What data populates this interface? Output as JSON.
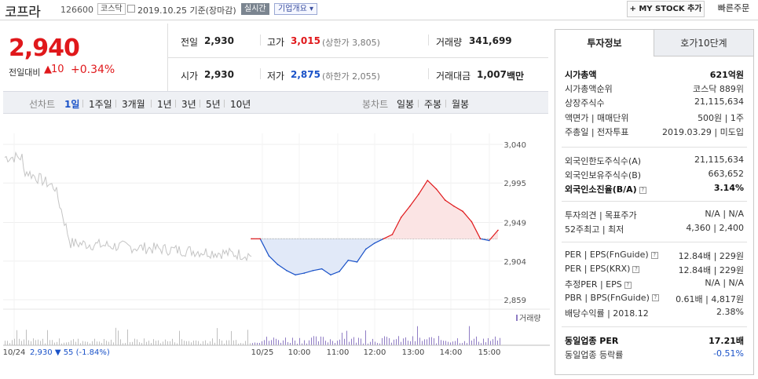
{
  "header": {
    "company_name": "코프라",
    "code": "126600",
    "market": "코스닥",
    "date_text": "2019.10.25  기준(장마감)",
    "realtime_label": "실시간",
    "overview_label": "기업개요",
    "overview_arrow": "▾",
    "mystock_label": "+ MY STOCK 추가",
    "quick_order_label": "빠른주문"
  },
  "price": {
    "current": "2,940",
    "change_label": "전일대비",
    "change_arrow": "▲",
    "change_value": "10",
    "change_percent": "+0.34%"
  },
  "quote": {
    "prev_close_label": "전일",
    "prev_close": "2,930",
    "open_label": "시가",
    "open": "2,930",
    "high_label": "고가",
    "high": "3,015",
    "upper_limit": "(상한가 3,805)",
    "low_label": "저가",
    "low": "2,875",
    "lower_limit": "(하한가 2,055)",
    "volume_label": "거래량",
    "volume": "341,699",
    "amount_label": "거래대금",
    "amount": "1,007",
    "amount_unit": "백만"
  },
  "period_bar": {
    "line_label": "선차트",
    "line_items": [
      "1일",
      "1주일",
      "3개월",
      "1년",
      "3년",
      "5년",
      "10년"
    ],
    "active": "1일",
    "candle_label": "봉차트",
    "candle_items": [
      "일봉",
      "주봉",
      "월봉"
    ]
  },
  "chart_data": {
    "type": "line",
    "series": [
      {
        "x": [
          "09:00",
          "09:15",
          "09:30",
          "09:45",
          "10:00",
          "10:15",
          "10:30",
          "10:45",
          "11:00",
          "11:15",
          "11:30",
          "11:45",
          "12:00",
          "12:15",
          "12:30",
          "12:45",
          "13:00",
          "13:15",
          "13:30",
          "13:45",
          "14:00",
          "14:15",
          "14:30",
          "14:45",
          "15:00",
          "15:05",
          "15:10",
          "15:15",
          "15:20"
        ],
        "values": [
          2930,
          2930,
          2910,
          2900,
          2893,
          2888,
          2890,
          2893,
          2895,
          2888,
          2892,
          2905,
          2903,
          2918,
          2925,
          2930,
          2935,
          2955,
          2968,
          2982,
          2998,
          2988,
          2975,
          2968,
          2962,
          2950,
          2930,
          2928,
          2940
        ]
      }
    ],
    "reference_value": 2930,
    "y_ticks": [
      "3,040",
      "2,995",
      "2,949",
      "2,904",
      "2,859"
    ],
    "ylim": [
      2859,
      3040
    ],
    "x_ticks": [
      "10/24",
      "10/25",
      "10:00",
      "11:00",
      "12:00",
      "13:00",
      "14:00",
      "15:00"
    ],
    "volume_label": "거래량",
    "prev_day_summary": {
      "date": "10/24",
      "close": "2,930",
      "arrow": "▼",
      "change": "55",
      "percent": "(-1.84%)"
    },
    "colors": {
      "up": "#e0181b",
      "down": "#1a52c8",
      "up_fill": "#fbe4e4",
      "down_fill": "#e1e9f8",
      "prev": "#c4c4c4",
      "volume": "#8f7cc4"
    }
  },
  "invest": {
    "tab_active": "투자정보",
    "tab_other": "호가10단계",
    "rows_group1": [
      {
        "label": "시가총액",
        "value": "621억원",
        "bold": true
      },
      {
        "label": "시가총액순위",
        "value": "코스닥 889위"
      },
      {
        "label": "상장주식수",
        "value": "21,115,634"
      },
      {
        "label": "액면가 | 매매단위",
        "value": "500원 | 1주"
      },
      {
        "label": "주총일 | 전자투표",
        "value": "2019.03.29 | 미도입"
      }
    ],
    "rows_group2": [
      {
        "label": "외국인한도주식수(A)",
        "value": "21,115,634"
      },
      {
        "label": "외국인보유주식수(B)",
        "value": "663,652"
      },
      {
        "label": "외국인소진율(B/A)",
        "value": "3.14%",
        "bold": true
      }
    ],
    "rows_group3": [
      {
        "label": "투자의견 | 목표주가",
        "value": "N/A | N/A"
      },
      {
        "label": "52주최고 | 최저",
        "value": "4,360 | 2,400"
      }
    ],
    "rows_group4": [
      {
        "label": "PER | EPS(FnGuide)",
        "value": "12.84배 | 229원"
      },
      {
        "label": "PER | EPS(KRX)",
        "value": "12.84배 | 229원"
      },
      {
        "label": "추정PER | EPS",
        "value": "N/A | N/A"
      },
      {
        "label": "PBR | BPS(FnGuide)",
        "value": "0.61배 | 4,817원"
      },
      {
        "label": "배당수익률 | 2018.12",
        "value": "2.38%"
      }
    ],
    "rows_group5": [
      {
        "label": "동일업종 PER",
        "value": "17.21배",
        "bold": true
      },
      {
        "label": "동일업종 등락률",
        "value": "-0.51%",
        "blue": true
      }
    ]
  }
}
